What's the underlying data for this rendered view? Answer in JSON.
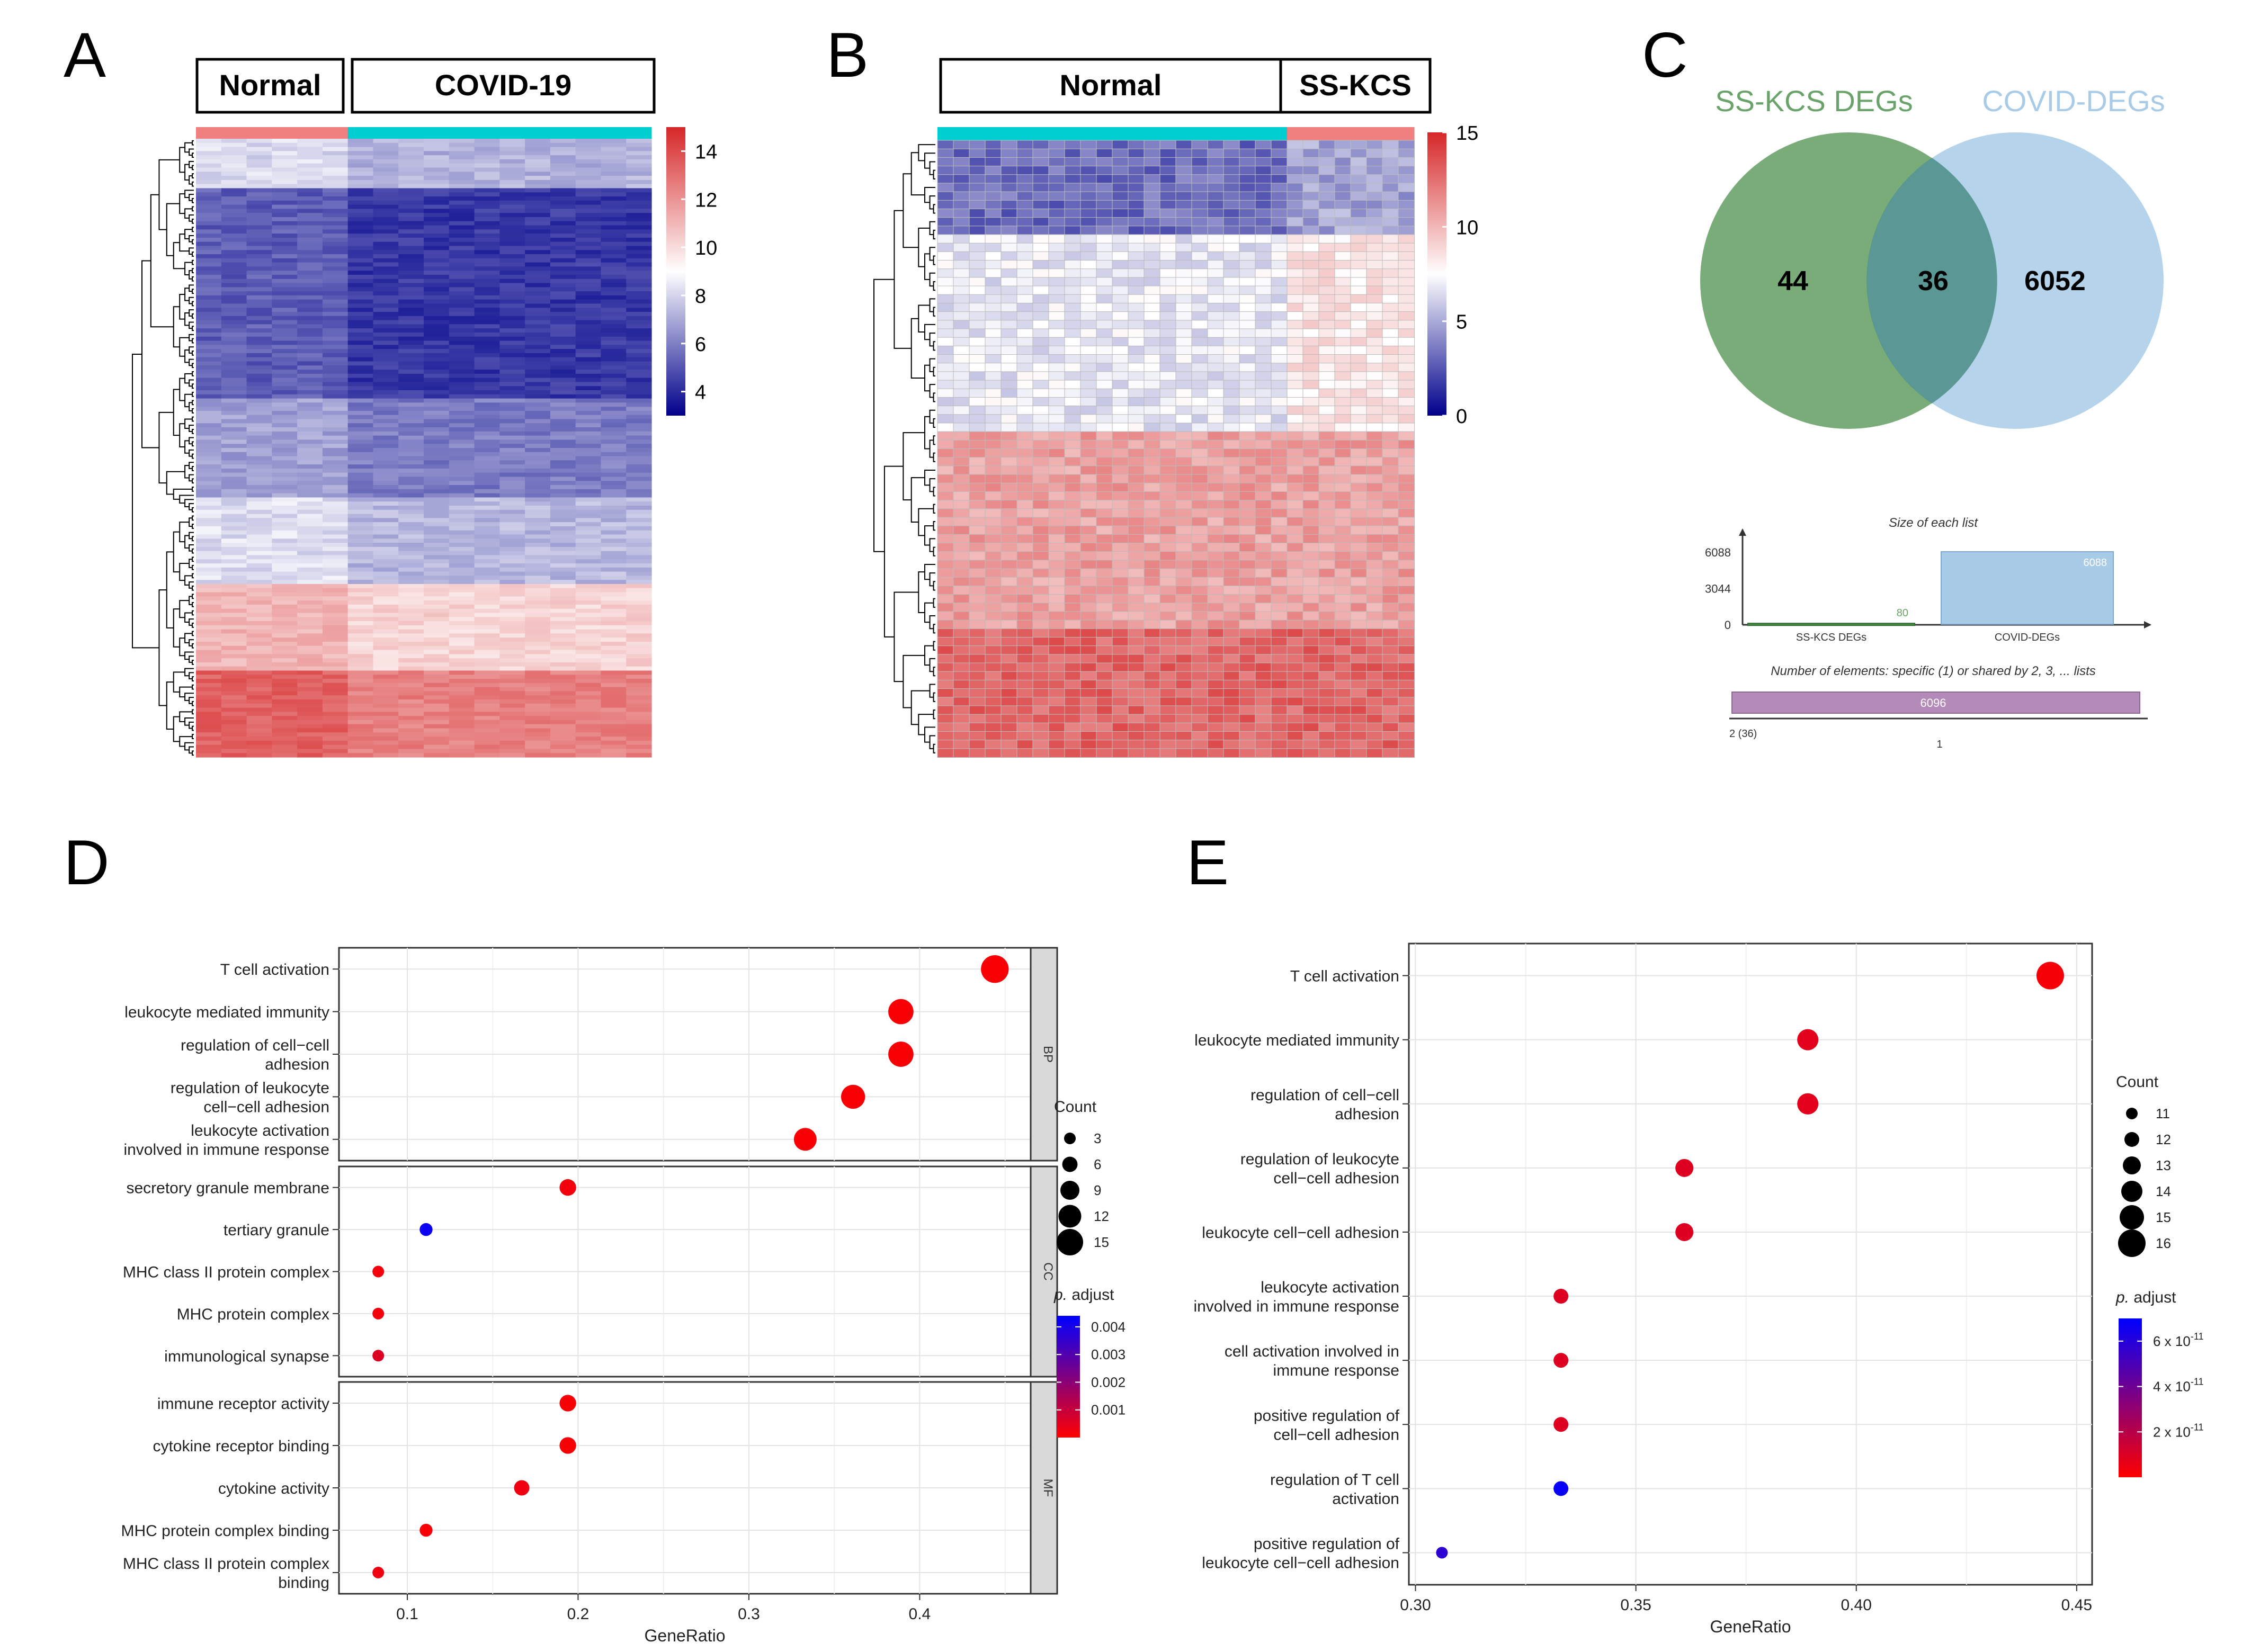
{
  "panel_labels": [
    "A",
    "B",
    "C",
    "D",
    "E"
  ],
  "chart_data": [
    {
      "panel": "A",
      "type": "heatmap",
      "groups": [
        {
          "name": "Normal",
          "color": "#f08080"
        },
        {
          "name": "COVID-19",
          "color": "#00ced1"
        }
      ],
      "colorbar": {
        "min": 3,
        "max": 15,
        "ticks": [
          4,
          6,
          8,
          10,
          12,
          14
        ],
        "colors": [
          "#00008b",
          "#ffffff",
          "#d62728"
        ]
      }
    },
    {
      "panel": "B",
      "type": "heatmap",
      "groups": [
        {
          "name": "Normal",
          "color": "#00ced1"
        },
        {
          "name": "SS-KCS",
          "color": "#f08080"
        }
      ],
      "colorbar": {
        "min": 0,
        "max": 15,
        "ticks": [
          0,
          5,
          10,
          15
        ],
        "colors": [
          "#00008b",
          "#ffffff",
          "#d62728"
        ]
      }
    },
    {
      "panel": "C",
      "type": "venn",
      "sets": [
        {
          "name": "SS-KCS DEGs",
          "color": "#6aa36a"
        },
        {
          "name": "COVID-DEGs",
          "color": "#a8cbe8"
        }
      ],
      "regions": {
        "left_only": "44",
        "intersection": "36",
        "right_only": "6052"
      },
      "bar_title": "Size of each list",
      "bar_yticks": [
        "0",
        "3044",
        "6088"
      ],
      "bars": [
        {
          "label": "SS-KCS DEGs",
          "value": 80,
          "value_label": "80"
        },
        {
          "label": "COVID-DEGs",
          "value": 6088,
          "value_label": "6088"
        }
      ],
      "elements_title": "Number of elements: specific (1) or shared by 2, 3, ... lists",
      "elements_bar_value": "6096",
      "elements_left_label": "2 (36)",
      "elements_tick": "1"
    },
    {
      "panel": "D",
      "type": "scatter",
      "xlabel": "GeneRatio",
      "xlim": [
        0.06,
        0.465
      ],
      "xticks": [
        "0.1",
        "0.2",
        "0.3",
        "0.4"
      ],
      "facets": [
        {
          "name": "BP",
          "terms": [
            {
              "label": [
                "T cell activation"
              ],
              "x": 0.444,
              "count": 16,
              "padj": 0.0001
            },
            {
              "label": [
                "leukocyte mediated immunity"
              ],
              "x": 0.389,
              "count": 14,
              "padj": 0.0001
            },
            {
              "label": [
                "regulation of cell−cell",
                "adhesion"
              ],
              "x": 0.389,
              "count": 14,
              "padj": 0.0001
            },
            {
              "label": [
                "regulation of leukocyte",
                "cell−cell adhesion"
              ],
              "x": 0.361,
              "count": 13,
              "padj": 0.0001
            },
            {
              "label": [
                "leukocyte activation",
                "involved in immune response"
              ],
              "x": 0.333,
              "count": 12,
              "padj": 0.0001
            }
          ]
        },
        {
          "name": "CC",
          "terms": [
            {
              "label": [
                "secretory granule membrane"
              ],
              "x": 0.194,
              "count": 7,
              "padj": 0.0002
            },
            {
              "label": [
                "tertiary granule"
              ],
              "x": 0.111,
              "count": 4,
              "padj": 0.0042
            },
            {
              "label": [
                "MHC class II protein complex"
              ],
              "x": 0.083,
              "count": 3,
              "padj": 0.0002
            },
            {
              "label": [
                "MHC protein complex"
              ],
              "x": 0.083,
              "count": 3,
              "padj": 0.0002
            },
            {
              "label": [
                "immunological synapse"
              ],
              "x": 0.083,
              "count": 3,
              "padj": 0.0006
            }
          ]
        },
        {
          "name": "MF",
          "terms": [
            {
              "label": [
                "immune receptor activity"
              ],
              "x": 0.194,
              "count": 7,
              "padj": 0.0001
            },
            {
              "label": [
                "cytokine receptor binding"
              ],
              "x": 0.194,
              "count": 7,
              "padj": 0.0001
            },
            {
              "label": [
                "cytokine activity"
              ],
              "x": 0.167,
              "count": 6,
              "padj": 0.0003
            },
            {
              "label": [
                "MHC protein complex binding"
              ],
              "x": 0.111,
              "count": 4,
              "padj": 0.0001
            },
            {
              "label": [
                "MHC class II protein complex",
                "binding"
              ],
              "x": 0.083,
              "count": 3,
              "padj": 0.0003
            }
          ]
        }
      ],
      "size_legend": {
        "title": "Count",
        "values": [
          3,
          6,
          9,
          12,
          15
        ]
      },
      "color_legend": {
        "title_italic": "p.",
        "title_rest": " adjust",
        "min": 0,
        "max": 0.0044,
        "ticks": [
          0.001,
          0.002,
          0.003,
          0.004
        ],
        "tick_labels": [
          "0.001",
          "0.002",
          "0.003",
          "0.004"
        ],
        "low_color": "#ff0000",
        "high_color": "#0000ff"
      }
    },
    {
      "panel": "E",
      "type": "scatter",
      "xlabel": "GeneRatio",
      "xlim": [
        0.2985,
        0.4535
      ],
      "xticks": [
        "0.30",
        "0.35",
        "0.40",
        "0.45"
      ],
      "terms": [
        {
          "label": [
            "T cell activation"
          ],
          "x": 0.444,
          "count": 16,
          "padj": 0.2
        },
        {
          "label": [
            "leukocyte mediated immunity"
          ],
          "x": 0.389,
          "count": 14,
          "padj": 0.8
        },
        {
          "label": [
            "regulation of cell−cell",
            "adhesion"
          ],
          "x": 0.389,
          "count": 14,
          "padj": 0.8
        },
        {
          "label": [
            "regulation of leukocyte",
            "cell−cell adhesion"
          ],
          "x": 0.361,
          "count": 13,
          "padj": 0.9
        },
        {
          "label": [
            "leukocyte cell−cell adhesion"
          ],
          "x": 0.361,
          "count": 13,
          "padj": 0.9
        },
        {
          "label": [
            "leukocyte activation",
            "involved in immune response"
          ],
          "x": 0.333,
          "count": 12,
          "padj": 0.9
        },
        {
          "label": [
            "cell activation involved in",
            "immune response"
          ],
          "x": 0.333,
          "count": 12,
          "padj": 0.9
        },
        {
          "label": [
            "positive regulation of",
            "cell−cell adhesion"
          ],
          "x": 0.333,
          "count": 12,
          "padj": 0.9
        },
        {
          "label": [
            "regulation of T cell",
            "activation"
          ],
          "x": 0.333,
          "count": 12,
          "padj": 6.8
        },
        {
          "label": [
            "positive regulation of",
            "leukocyte cell−cell adhesion"
          ],
          "x": 0.306,
          "count": 11,
          "padj": 5.8
        }
      ],
      "size_legend": {
        "title": "Count",
        "values": [
          11,
          12,
          13,
          14,
          15,
          16
        ]
      },
      "color_legend": {
        "title_italic": "p.",
        "title_rest": " adjust",
        "min": 0,
        "max": 7,
        "ticks": [
          2,
          4,
          6
        ],
        "tick_labels": [
          "2 x 10",
          "4 x 10",
          "6 x 10"
        ],
        "tick_exp": "-11",
        "low_color": "#ff0000",
        "high_color": "#0000ff"
      }
    }
  ]
}
